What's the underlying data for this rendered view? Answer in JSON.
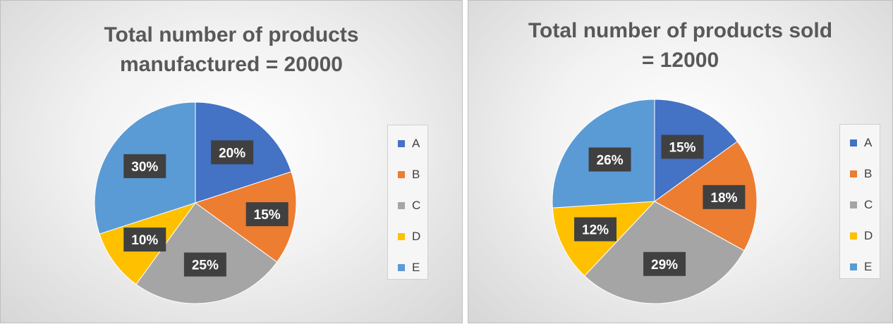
{
  "chart_data": [
    {
      "type": "pie",
      "title_lines": [
        "Total number of products",
        "manufactured = 20000"
      ],
      "categories": [
        "A",
        "B",
        "C",
        "D",
        "E"
      ],
      "values": [
        20,
        15,
        25,
        10,
        30
      ],
      "labels": [
        "20%",
        "15%",
        "25%",
        "10%",
        "30%"
      ],
      "colors": [
        "#4472C4",
        "#ED7D31",
        "#A5A5A5",
        "#FFC000",
        "#5B9BD5"
      ],
      "legend_position": "right",
      "start_angle": "12 o'clock",
      "direction": "clockwise"
    },
    {
      "type": "pie",
      "title_lines": [
        "Total number of products sold",
        "= 12000"
      ],
      "categories": [
        "A",
        "B",
        "C",
        "D",
        "E"
      ],
      "values": [
        15,
        18,
        29,
        12,
        26
      ],
      "labels": [
        "15%",
        "18%",
        "29%",
        "12%",
        "26%"
      ],
      "colors": [
        "#4472C4",
        "#ED7D31",
        "#A5A5A5",
        "#FFC000",
        "#5B9BD5"
      ],
      "legend_position": "right",
      "start_angle": "12 o'clock",
      "direction": "clockwise"
    }
  ]
}
